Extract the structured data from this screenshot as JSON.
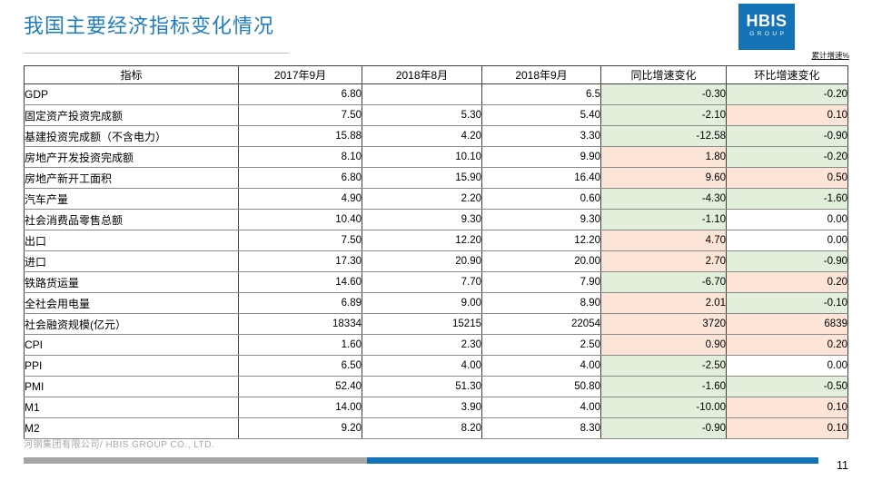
{
  "title": "我国主要经济指标变化情况",
  "note": "累计增速%",
  "logo": {
    "line1": "HBIS",
    "line2": "GROUP"
  },
  "footer": {
    "company": "河钢集团有限公司/ HBIS GROUP CO., LTD.",
    "page_number": "11"
  },
  "colors": {
    "accent_blue": "#1F7EC2",
    "logo_blue": "#1472B7",
    "bar_grey": "#A6A6A6",
    "bar_blue": "#1272B6",
    "decrease_fill": "#E2EFDA",
    "increase_fill": "#FCE4D6"
  },
  "chart_data": {
    "type": "table",
    "title": "我国主要经济指标变化情况",
    "unit_note": "累计增速%",
    "headers": [
      "指标",
      "2017年9月",
      "2018年8月",
      "2018年9月",
      "同比增速变化",
      "环比增速变化"
    ],
    "rows": [
      {
        "indicator": "GDP",
        "v1": "6.80",
        "v2": "",
        "v3": "6.5",
        "yoy": "-0.30",
        "mom": "-0.20",
        "yoy_fill": "down",
        "mom_fill": "down"
      },
      {
        "indicator": "固定资产投资完成额",
        "v1": "7.50",
        "v2": "5.30",
        "v3": "5.40",
        "yoy": "-2.10",
        "mom": "0.10",
        "yoy_fill": "down",
        "mom_fill": "up"
      },
      {
        "indicator": "基建投资完成额（不含电力）",
        "v1": "15.88",
        "v2": "4.20",
        "v3": "3.30",
        "yoy": "-12.58",
        "mom": "-0.90",
        "yoy_fill": "down",
        "mom_fill": "down"
      },
      {
        "indicator": "房地产开发投资完成额",
        "v1": "8.10",
        "v2": "10.10",
        "v3": "9.90",
        "yoy": "1.80",
        "mom": "-0.20",
        "yoy_fill": "up",
        "mom_fill": "down"
      },
      {
        "indicator": "房地产新开工面积",
        "v1": "6.80",
        "v2": "15.90",
        "v3": "16.40",
        "yoy": "9.60",
        "mom": "0.50",
        "yoy_fill": "up",
        "mom_fill": "up"
      },
      {
        "indicator": "汽车产量",
        "v1": "4.90",
        "v2": "2.20",
        "v3": "0.60",
        "yoy": "-4.30",
        "mom": "-1.60",
        "yoy_fill": "down",
        "mom_fill": "down"
      },
      {
        "indicator": "社会消费品零售总额",
        "v1": "10.40",
        "v2": "9.30",
        "v3": "9.30",
        "yoy": "-1.10",
        "mom": "0.00",
        "yoy_fill": "down",
        "mom_fill": "zero"
      },
      {
        "indicator": "出口",
        "v1": "7.50",
        "v2": "12.20",
        "v3": "12.20",
        "yoy": "4.70",
        "mom": "0.00",
        "yoy_fill": "up",
        "mom_fill": "zero"
      },
      {
        "indicator": "进口",
        "v1": "17.30",
        "v2": "20.90",
        "v3": "20.00",
        "yoy": "2.70",
        "mom": "-0.90",
        "yoy_fill": "up",
        "mom_fill": "down"
      },
      {
        "indicator": "铁路货运量",
        "v1": "14.60",
        "v2": "7.70",
        "v3": "7.90",
        "yoy": "-6.70",
        "mom": "0.20",
        "yoy_fill": "down",
        "mom_fill": "up"
      },
      {
        "indicator": "全社会用电量",
        "v1": "6.89",
        "v2": "9.00",
        "v3": "8.90",
        "yoy": "2.01",
        "mom": "-0.10",
        "yoy_fill": "up",
        "mom_fill": "down"
      },
      {
        "indicator": "社会融资规模(亿元）",
        "v1": "18334",
        "v2": "15215",
        "v3": "22054",
        "yoy": "3720",
        "mom": "6839",
        "yoy_fill": "up",
        "mom_fill": "up"
      },
      {
        "indicator": "CPI",
        "v1": "1.60",
        "v2": "2.30",
        "v3": "2.50",
        "yoy": "0.90",
        "mom": "0.20",
        "yoy_fill": "up",
        "mom_fill": "up"
      },
      {
        "indicator": "PPI",
        "v1": "6.50",
        "v2": "4.00",
        "v3": "4.00",
        "yoy": "-2.50",
        "mom": "0.00",
        "yoy_fill": "down",
        "mom_fill": "zero"
      },
      {
        "indicator": "PMI",
        "v1": "52.40",
        "v2": "51.30",
        "v3": "50.80",
        "yoy": "-1.60",
        "mom": "-0.50",
        "yoy_fill": "down",
        "mom_fill": "down"
      },
      {
        "indicator": "M1",
        "v1": "14.00",
        "v2": "3.90",
        "v3": "4.00",
        "yoy": "-10.00",
        "mom": "0.10",
        "yoy_fill": "down",
        "mom_fill": "up"
      },
      {
        "indicator": "M2",
        "v1": "9.20",
        "v2": "8.20",
        "v3": "8.30",
        "yoy": "-0.90",
        "mom": "0.10",
        "yoy_fill": "down",
        "mom_fill": "up"
      }
    ]
  }
}
